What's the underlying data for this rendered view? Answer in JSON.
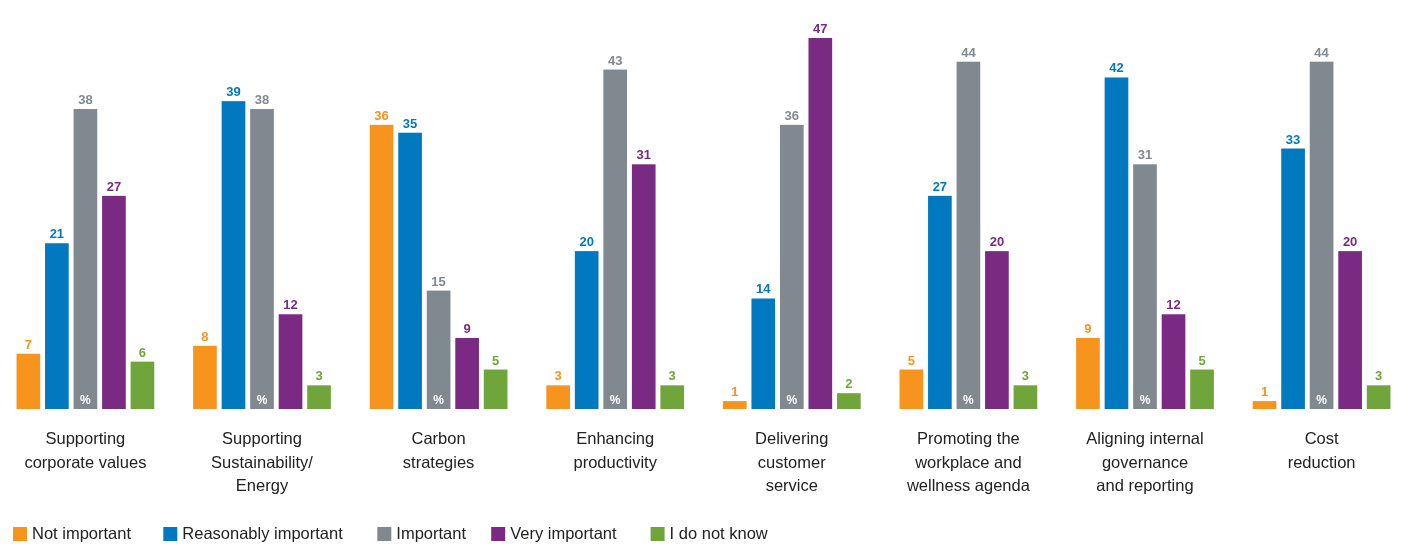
{
  "chart_data": {
    "type": "bar",
    "categories": [
      "Supporting\ncorporate values",
      "Supporting\nSustainability/\nEnergy",
      "Carbon\nstrategies",
      "Enhancing\nproductivity",
      "Delivering\ncustomer\nservice",
      "Promoting the\nworkplace and\nwellness agenda",
      "Aligning internal\ngovernance\nand reporting",
      "Cost\nreduction"
    ],
    "series": [
      {
        "name": "Not important",
        "color": "#f7941d",
        "values": [
          7,
          8,
          36,
          3,
          1,
          5,
          9,
          1
        ]
      },
      {
        "name": "Reasonably important",
        "color": "#0079c1",
        "values": [
          21,
          39,
          35,
          20,
          14,
          27,
          42,
          33
        ]
      },
      {
        "name": "Important",
        "color": "#808890",
        "values": [
          38,
          38,
          15,
          43,
          36,
          44,
          31,
          44
        ]
      },
      {
        "name": "Very important",
        "color": "#7b2a83",
        "values": [
          27,
          12,
          9,
          31,
          47,
          20,
          12,
          20
        ]
      },
      {
        "name": "I do not know",
        "color": "#6fa53a",
        "values": [
          6,
          3,
          5,
          3,
          2,
          3,
          5,
          3
        ]
      }
    ],
    "data_labels": true,
    "legend": "bottom left",
    "annotations": [
      {
        "text": "%",
        "x": "Supporting\ncorporate values",
        "y": 0
      },
      {
        "text": "%",
        "x": "Supporting\nSustainability/\nEnergy",
        "y": 0
      },
      {
        "text": "%",
        "x": "Carbon\nstrategies",
        "y": 0
      },
      {
        "text": "%",
        "x": "Enhancing\nproductivity",
        "y": 0
      },
      {
        "text": "%",
        "x": "Delivering\ncustomer\nservice",
        "y": 0
      },
      {
        "text": "%",
        "x": "Promoting the\nworkplace and\nwellness agenda",
        "y": 0
      },
      {
        "text": "%",
        "x": "Aligning internal\ngovernance\nand reporting",
        "y": 0
      },
      {
        "text": "%",
        "x": "Cost\nreduction",
        "y": 0
      }
    ]
  }
}
